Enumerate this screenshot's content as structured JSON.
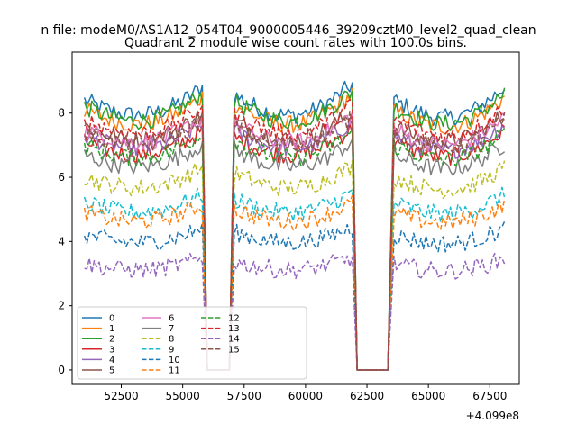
{
  "chart_data": {
    "type": "line",
    "suptitle": "n file: modeM0/AS1A12_054T04_9000005446_39209cztM0_level2_quad_clean",
    "title": "Quadrant 2 module wise count rates with 100.0s bins.",
    "xlabel": "",
    "ylabel": "",
    "x_offset_label": "+4.099e8",
    "xlim": [
      50500,
      68700
    ],
    "ylim": [
      -0.45,
      9.9
    ],
    "x_ticks": [
      52500,
      55000,
      57500,
      60000,
      62500,
      65000,
      67500
    ],
    "x_tick_labels": [
      "52500",
      "55000",
      "57500",
      "60000",
      "62500",
      "65000",
      "67500"
    ],
    "y_ticks": [
      0,
      2,
      4,
      6,
      8
    ],
    "y_tick_labels": [
      "0",
      "2",
      "4",
      "6",
      "8"
    ],
    "segments": [
      {
        "start": 51000,
        "end": 55800,
        "decay_to_zero_at": 56000
      },
      {
        "start": 57100,
        "end": 61900,
        "rise_from_zero_at": 56900,
        "decay_to_zero_at": 62100
      },
      {
        "start": 63600,
        "end": 68100,
        "rise_from_zero_at": 63350
      }
    ],
    "zero_gaps": [
      [
        56000,
        56900
      ],
      [
        62100,
        63350
      ]
    ],
    "legend_loc": "lower left",
    "legend_columns": 4,
    "series": [
      {
        "name": "0",
        "level": 8.4,
        "color": "#1f77b4",
        "dash": "solid"
      },
      {
        "name": "1",
        "level": 8.1,
        "color": "#ff7f0e",
        "dash": "solid"
      },
      {
        "name": "2",
        "level": 8.2,
        "color": "#2ca02c",
        "dash": "solid"
      },
      {
        "name": "3",
        "level": 7.1,
        "color": "#d62728",
        "dash": "solid"
      },
      {
        "name": "4",
        "level": 7.3,
        "color": "#9467bd",
        "dash": "solid"
      },
      {
        "name": "5",
        "level": 7.6,
        "color": "#8c564b",
        "dash": "solid"
      },
      {
        "name": "6",
        "level": 7.5,
        "color": "#e377c2",
        "dash": "solid"
      },
      {
        "name": "7",
        "level": 6.7,
        "color": "#7f7f7f",
        "dash": "solid"
      },
      {
        "name": "8",
        "level": 6.0,
        "color": "#bcbd22",
        "dash": "dashed"
      },
      {
        "name": "9",
        "level": 5.2,
        "color": "#17becf",
        "dash": "dashed"
      },
      {
        "name": "10",
        "level": 4.2,
        "color": "#1f77b4",
        "dash": "dashed"
      },
      {
        "name": "11",
        "level": 4.9,
        "color": "#ff7f0e",
        "dash": "dashed"
      },
      {
        "name": "12",
        "level": 7.0,
        "color": "#2ca02c",
        "dash": "dashed"
      },
      {
        "name": "13",
        "level": 7.8,
        "color": "#d62728",
        "dash": "dashed"
      },
      {
        "name": "14",
        "level": 3.3,
        "color": "#9467bd",
        "dash": "dashed"
      },
      {
        "name": "15",
        "level": 7.4,
        "color": "#8c564b",
        "dash": "dashed"
      }
    ]
  }
}
